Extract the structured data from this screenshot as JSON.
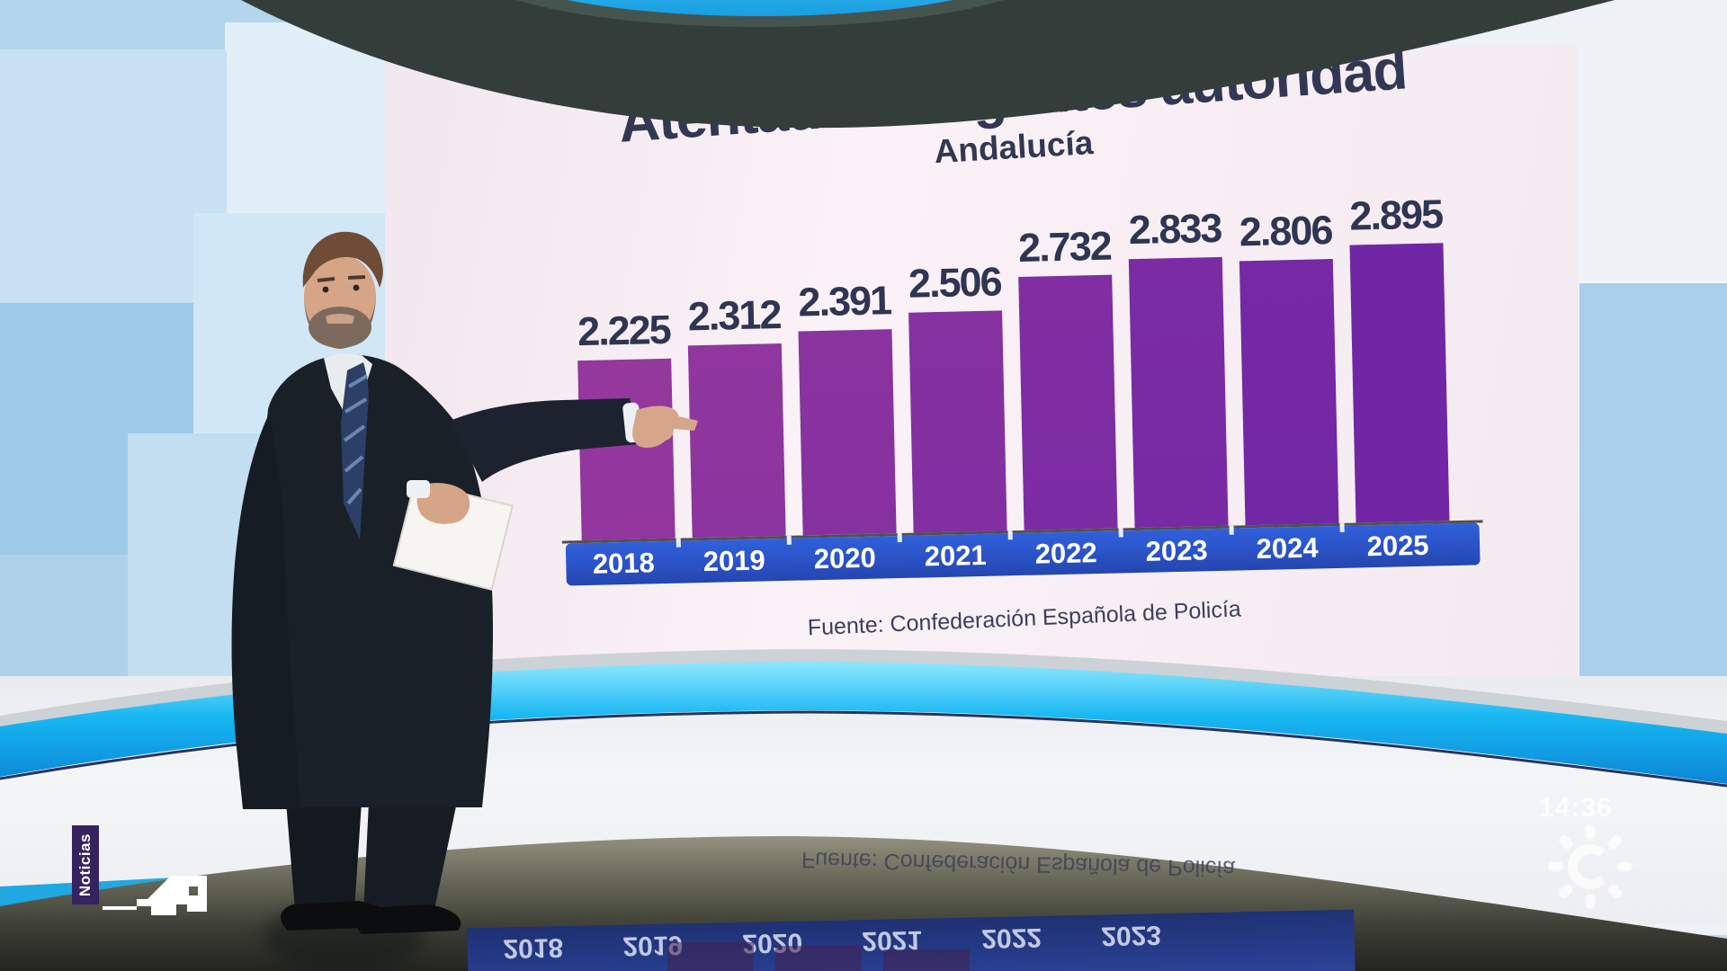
{
  "broadcast": {
    "clock": "14:36",
    "channel_badge": "Noticias",
    "channel_logo_icon": "canal-sur-sun-icon",
    "news_glyph_icon": "canal-sur-news-icon"
  },
  "chart_data": {
    "type": "bar",
    "title": "Atentados a agentes autoridad",
    "subtitle": "Andalucía",
    "source": "Fuente: Confederación Española de Policía",
    "categories": [
      "2018",
      "2019",
      "2020",
      "2021",
      "2022",
      "2023",
      "2024",
      "2025"
    ],
    "values": [
      2225,
      2312,
      2391,
      2506,
      2732,
      2833,
      2806,
      2895
    ],
    "value_labels": [
      "2.225",
      "2.312",
      "2.391",
      "2.506",
      "2.732",
      "2.833",
      "2.806",
      "2.895"
    ],
    "ylim": [
      0,
      3000
    ],
    "grid": false,
    "legend": "none",
    "bar_color_start": "#95389d",
    "bar_color_end": "#7127a5",
    "band_color": "#2b52c6",
    "label_color": "#2f3552"
  },
  "reflection": {
    "visible_years": [
      "2018",
      "2019",
      "2020",
      "2021",
      "2022",
      "2023"
    ]
  },
  "studio": {
    "accent_cyan": "#19b6f2",
    "top_arc_color": "#333e3b"
  }
}
